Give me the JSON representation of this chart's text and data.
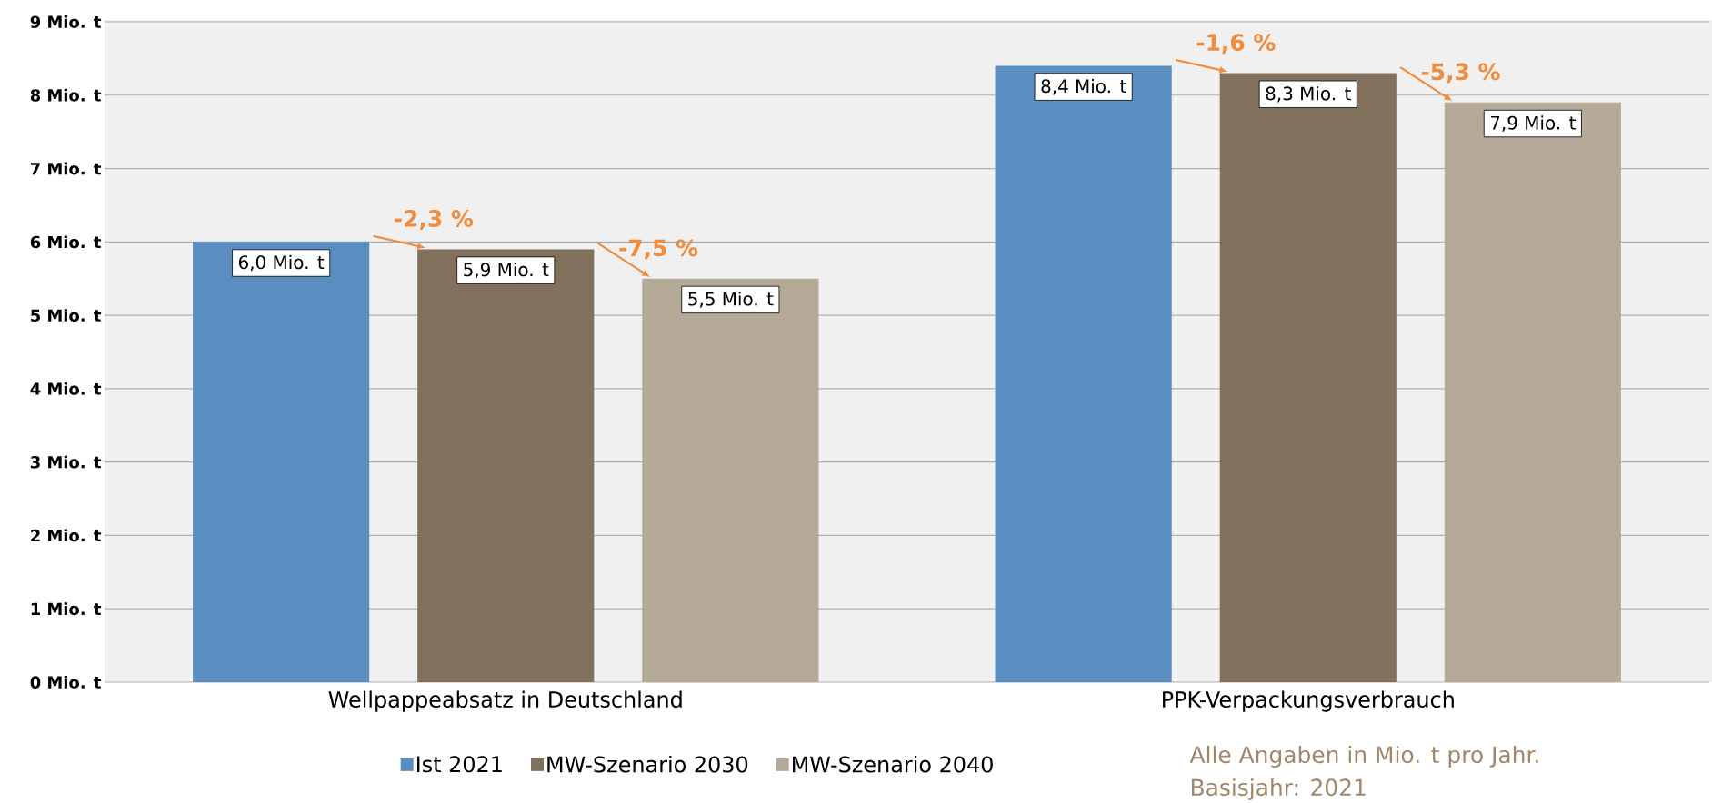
{
  "chart_data": {
    "type": "bar",
    "categories": [
      "Wellpappeabsatz in Deutschland",
      "PPK-Verpackungsverbrauch"
    ],
    "series": [
      {
        "name": "Ist 2021",
        "color": "#5b8ec0",
        "values": [
          6.0,
          8.4
        ],
        "value_labels": [
          "6,0 Mio. t",
          "8,4 Mio. t"
        ]
      },
      {
        "name": "MW-Szenario 2030",
        "color": "#80705c",
        "values": [
          5.9,
          8.3
        ],
        "value_labels": [
          "5,9 Mio. t",
          "8,3 Mio. t"
        ]
      },
      {
        "name": "MW-Szenario 2040",
        "color": "#b5aa98",
        "values": [
          5.5,
          7.9
        ],
        "value_labels": [
          "5,5 Mio. t",
          "7,9 Mio. t"
        ]
      }
    ],
    "ylim": [
      0,
      9
    ],
    "yticks": [
      {
        "value": 0,
        "label": "0 Mio. t"
      },
      {
        "value": 1,
        "label": "1 Mio. t"
      },
      {
        "value": 2,
        "label": "2 Mio. t"
      },
      {
        "value": 3,
        "label": "3 Mio. t"
      },
      {
        "value": 4,
        "label": "4 Mio. t"
      },
      {
        "value": 5,
        "label": "5 Mio. t"
      },
      {
        "value": 6,
        "label": "6 Mio. t"
      },
      {
        "value": 7,
        "label": "7 Mio. t"
      },
      {
        "value": 8,
        "label": "8 Mio. t"
      },
      {
        "value": 9,
        "label": "9 Mio. t"
      }
    ],
    "grid": "y",
    "legend": "bottom",
    "annotations": [
      "-2,3 %",
      "-7,5 %",
      "-1,6 %",
      "-5,3 %",
      "Alle Angaben in Mio. t pro Jahr.",
      "Basisjahr: 2021"
    ]
  }
}
